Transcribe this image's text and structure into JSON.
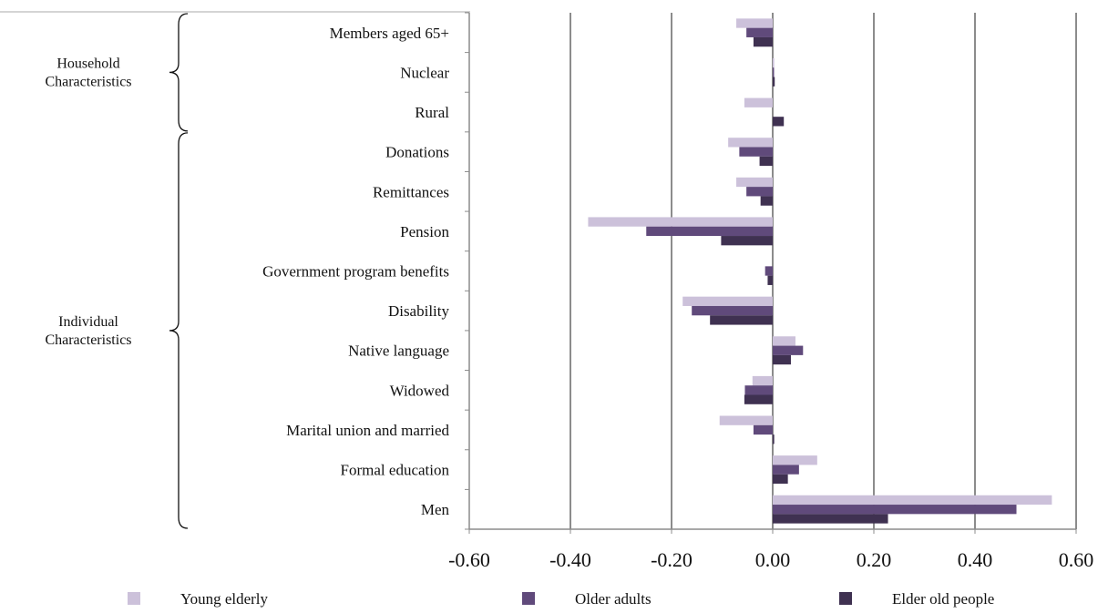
{
  "chart_data": {
    "type": "bar",
    "orientation": "horizontal",
    "categories": [
      "Members aged 65+",
      "Nuclear",
      "Rural",
      "Donations",
      "Remittances",
      "Pension",
      "Government program benefits",
      "Disability",
      "Native language",
      "Widowed",
      "Marital union and married",
      "Formal education",
      "Men"
    ],
    "series": [
      {
        "name": "Young elderly",
        "color": "#ccc1da",
        "values": [
          -0.072,
          0.003,
          -0.056,
          -0.088,
          -0.072,
          -0.365,
          0.0,
          -0.178,
          0.045,
          -0.04,
          -0.105,
          0.088,
          0.552
        ]
      },
      {
        "name": "Older adults",
        "color": "#604a7b",
        "values": [
          -0.052,
          0.002,
          0.0,
          -0.066,
          -0.052,
          -0.25,
          -0.015,
          -0.16,
          0.06,
          -0.055,
          -0.038,
          0.052,
          0.482
        ]
      },
      {
        "name": "Elder old people",
        "color": "#3f3151",
        "values": [
          -0.038,
          0.004,
          0.022,
          -0.026,
          -0.024,
          -0.102,
          -0.01,
          -0.124,
          0.036,
          -0.056,
          0.003,
          0.03,
          0.228
        ]
      }
    ],
    "xlim": [
      -0.6,
      0.6
    ],
    "xticks": [
      "-0.60",
      "-0.40",
      "-0.20",
      "0.00",
      "0.20",
      "0.40",
      "0.60"
    ],
    "grid": true,
    "legend_position": "bottom",
    "groups": [
      {
        "label_lines": [
          "Household",
          "Characteristics"
        ],
        "from": 0,
        "to": 2
      },
      {
        "label_lines": [
          "Individual",
          "Characteristics"
        ],
        "from": 3,
        "to": 12
      }
    ]
  }
}
